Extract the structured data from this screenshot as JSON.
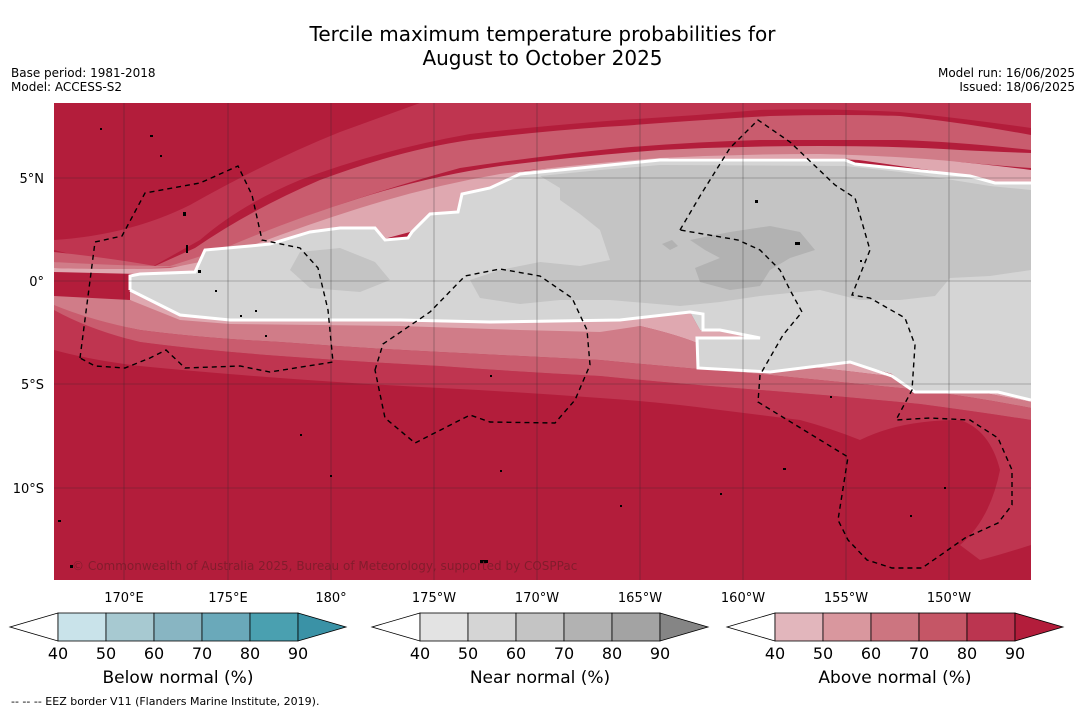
{
  "title_line1": "Tercile maximum temperature probabilities for",
  "title_line2": "August to October 2025",
  "meta_left": {
    "base_period": "Base period: 1981-2018",
    "model": "Model: ACCESS-S2"
  },
  "meta_right": {
    "model_run": "Model run: 16/06/2025",
    "issued": "Issued: 18/06/2025"
  },
  "map": {
    "lat_labels": [
      "5°N",
      "0°",
      "5°S",
      "10°S"
    ],
    "lon_labels": [
      "170°E",
      "175°E",
      "180°",
      "175°W",
      "170°W",
      "165°W",
      "160°W",
      "155°W",
      "150°W"
    ],
    "copyright": "© Commonwealth of Australia 2025, Bureau of Meteorology, supported by COSPPac",
    "colors": {
      "above_90": "#b31d3b",
      "above_80": "#bf3550",
      "above_70": "#c95c6e",
      "above_60": "#d07c88",
      "above_50": "#dfa8b0",
      "near_40": "#e3e3e3",
      "near_50": "#d5d5d5",
      "near_60": "#c4c4c4",
      "near_70": "#b2b2b2",
      "near_80": "#a3a3a3"
    }
  },
  "colorbars": [
    {
      "label": "Below normal (%)",
      "ticks": [
        "40",
        "50",
        "60",
        "70",
        "80",
        "90"
      ],
      "colors": [
        "#c9e3ea",
        "#a7c9d1",
        "#88b5c2",
        "#6aa9ba",
        "#4aa0b0"
      ],
      "extend_color": "#3a92a6"
    },
    {
      "label": "Near normal (%)",
      "ticks": [
        "40",
        "50",
        "60",
        "70",
        "80",
        "90"
      ],
      "colors": [
        "#e3e3e3",
        "#d5d5d5",
        "#c4c4c4",
        "#b2b2b2",
        "#a3a3a3"
      ],
      "extend_color": "#858585"
    },
    {
      "label": "Above normal (%)",
      "ticks": [
        "40",
        "50",
        "60",
        "70",
        "80",
        "90"
      ],
      "colors": [
        "#e2b6bc",
        "#d9979e",
        "#cc7580",
        "#c55666",
        "#bb3550"
      ],
      "extend_color": "#b31d3b"
    }
  ],
  "footer": "--  --  -- EEZ border V11 (Flanders Marine Institute, 2019)."
}
